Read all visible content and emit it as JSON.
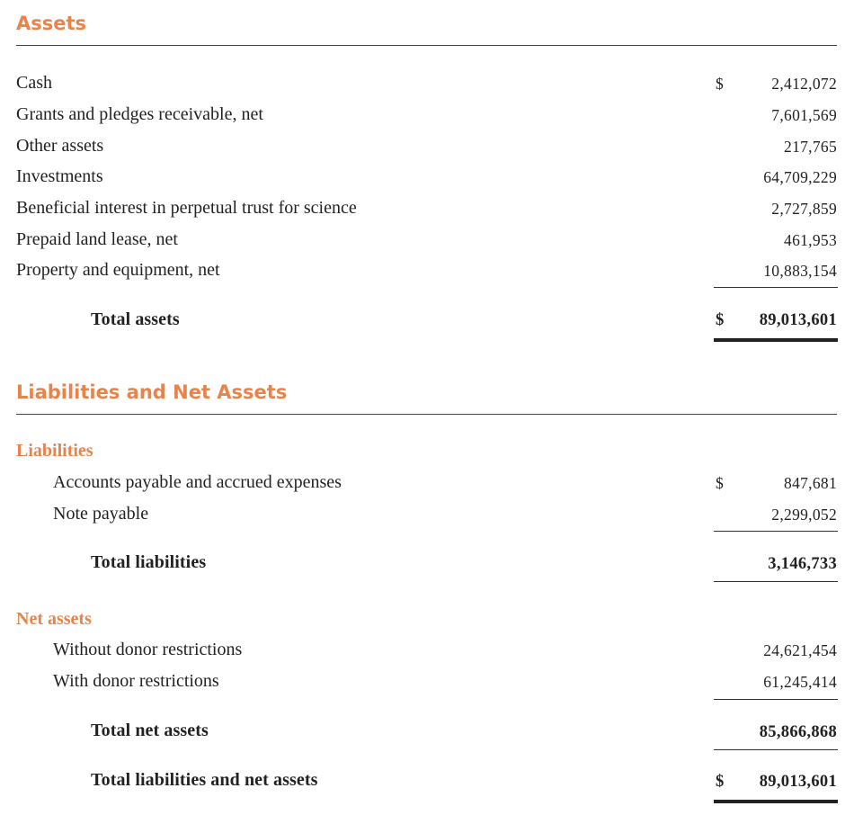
{
  "assets": {
    "heading": "Assets",
    "rows": [
      {
        "label": "Cash",
        "currency": "$",
        "value": "2,412,072"
      },
      {
        "label": "Grants and pledges receivable, net",
        "value": "7,601,569"
      },
      {
        "label": "Other assets",
        "value": "217,765"
      },
      {
        "label": "Investments",
        "value": "64,709,229"
      },
      {
        "label": "Beneficial interest in perpetual trust for science",
        "value": "2,727,859"
      },
      {
        "label": "Prepaid land lease, net",
        "value": "461,953"
      },
      {
        "label": "Property and equipment, net",
        "value": "10,883,154"
      }
    ],
    "total": {
      "label": "Total assets",
      "currency": "$",
      "value": "89,013,601"
    }
  },
  "liabilities_net_assets": {
    "heading": "Liabilities and Net Assets",
    "liabilities": {
      "subheading": "Liabilities",
      "rows": [
        {
          "label": "Accounts payable and accrued expenses",
          "currency": "$",
          "value": "847,681"
        },
        {
          "label": "Note payable",
          "value": "2,299,052"
        }
      ],
      "total": {
        "label": "Total liabilities",
        "value": "3,146,733"
      }
    },
    "net_assets": {
      "subheading": "Net assets",
      "rows": [
        {
          "label": "Without donor restrictions",
          "value": "24,621,454"
        },
        {
          "label": "With donor restrictions",
          "value": "61,245,414"
        }
      ],
      "total": {
        "label": "Total net assets",
        "value": "85,866,868"
      }
    },
    "grand_total": {
      "label": "Total liabilities and net assets",
      "currency": "$",
      "value": "89,013,601"
    }
  },
  "colors": {
    "accent": "#e8834a",
    "text": "#222222",
    "rule": "#444444"
  }
}
